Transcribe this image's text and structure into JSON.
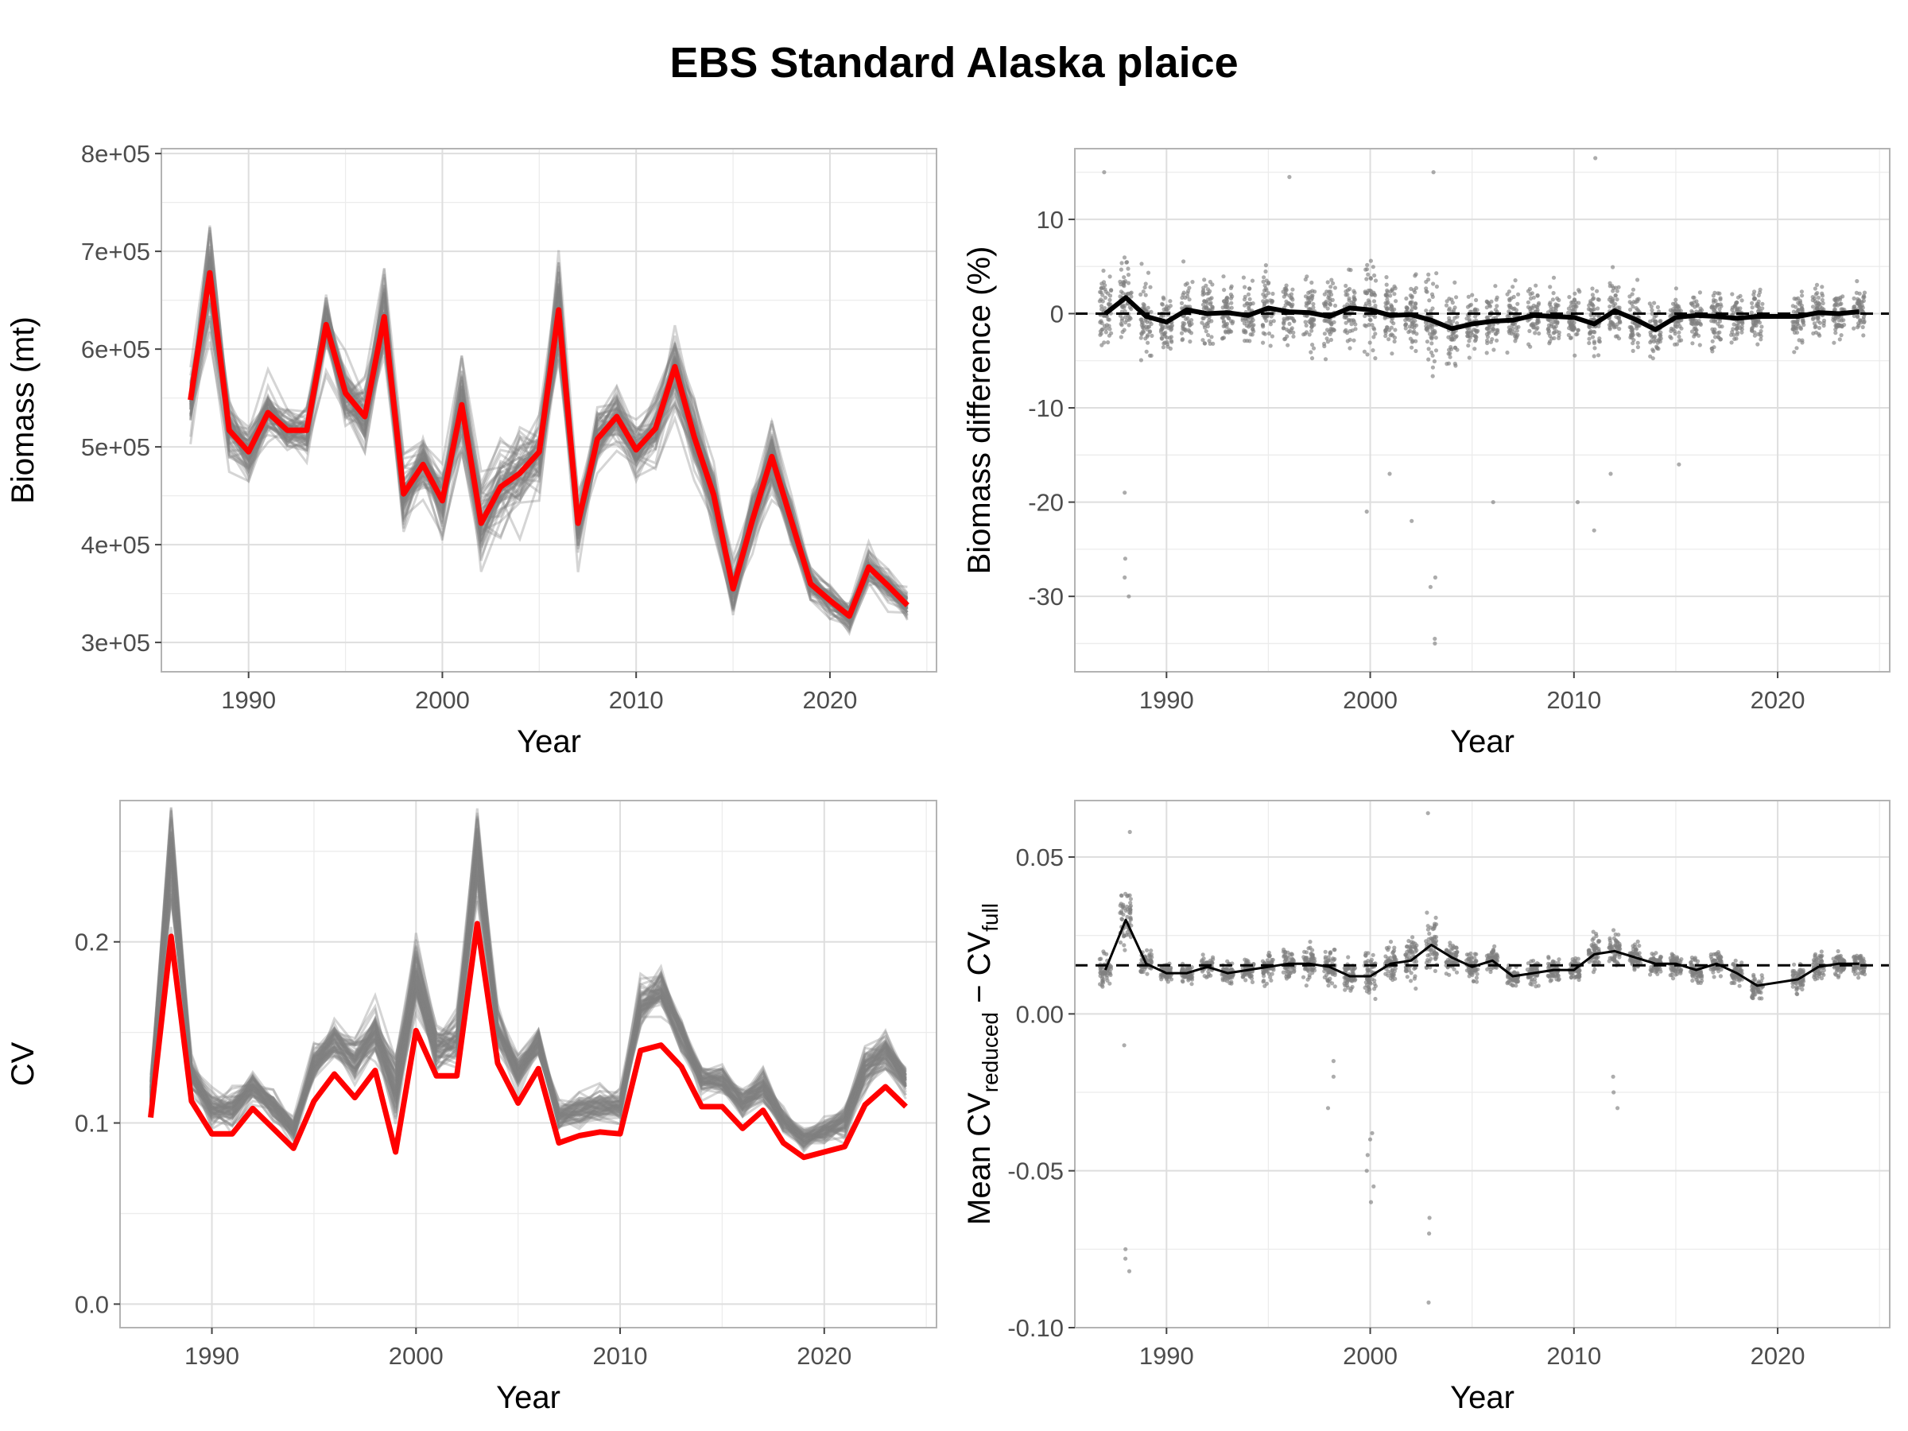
{
  "title": "EBS Standard Alaska plaice",
  "chart_data": [
    {
      "type": "line",
      "panel": "top-left",
      "xlabel": "Year",
      "ylabel": "Biomass (mt)",
      "xlim": [
        1985.5,
        2025.5
      ],
      "ylim": [
        270000,
        805000
      ],
      "x_ticks": [
        1990,
        2000,
        2010,
        2020
      ],
      "x_tick_labels": [
        "1990",
        "2000",
        "2010",
        "2020"
      ],
      "y_ticks": [
        300000,
        400000,
        500000,
        600000,
        700000,
        800000
      ],
      "y_tick_labels": [
        "3e+05",
        "4e+05",
        "5e+05",
        "6e+05",
        "7e+05",
        "8e+05"
      ],
      "grid": true,
      "x": [
        1987,
        1988,
        1989,
        1990,
        1991,
        1992,
        1993,
        1994,
        1995,
        1996,
        1997,
        1998,
        1999,
        2000,
        2001,
        2002,
        2003,
        2004,
        2005,
        2006,
        2007,
        2008,
        2009,
        2010,
        2011,
        2012,
        2013,
        2014,
        2015,
        2016,
        2017,
        2018,
        2019,
        2020,
        2021,
        2022,
        2023,
        2024
      ],
      "series": [
        {
          "role": "full survey",
          "color": "#ff0000",
          "values": [
            548000,
            678000,
            517000,
            495000,
            535000,
            517000,
            517000,
            625000,
            555000,
            531000,
            633000,
            452000,
            482000,
            445000,
            543000,
            422000,
            459000,
            473000,
            495000,
            640000,
            422000,
            508000,
            531000,
            497000,
            519000,
            582000,
            510000,
            451000,
            355000,
            425000,
            490000,
            425000,
            360000,
            343000,
            327000,
            377000,
            358000,
            338000
          ]
        }
      ],
      "replicates": {
        "role": "reduced-station replicates",
        "color": "#808080",
        "count": 60,
        "spread_fraction": [
          0.06,
          0.09,
          0.07,
          0.06,
          0.05,
          0.05,
          0.05,
          0.06,
          0.06,
          0.07,
          0.08,
          0.08,
          0.07,
          0.08,
          0.09,
          0.1,
          0.1,
          0.09,
          0.08,
          0.09,
          0.08,
          0.06,
          0.06,
          0.06,
          0.06,
          0.07,
          0.07,
          0.07,
          0.07,
          0.07,
          0.07,
          0.06,
          0.05,
          0.05,
          0.05,
          0.05,
          0.05,
          0.05
        ]
      }
    },
    {
      "type": "scatter",
      "panel": "top-right",
      "xlabel": "Year",
      "ylabel": "Biomass difference (%)",
      "xlim": [
        1985.5,
        2025.5
      ],
      "ylim": [
        -38,
        17.5
      ],
      "x_ticks": [
        1990,
        2000,
        2010,
        2020
      ],
      "x_tick_labels": [
        "1990",
        "2000",
        "2010",
        "2020"
      ],
      "y_ticks": [
        -30,
        -20,
        -10,
        0,
        10
      ],
      "y_tick_labels": [
        "-30",
        "-20",
        "-10",
        "0",
        "10"
      ],
      "grid": true,
      "reference_line": 0,
      "x": [
        1987,
        1988,
        1989,
        1990,
        1991,
        1992,
        1993,
        1994,
        1995,
        1996,
        1997,
        1998,
        1999,
        2000,
        2001,
        2002,
        2003,
        2004,
        2005,
        2006,
        2007,
        2008,
        2009,
        2010,
        2011,
        2012,
        2013,
        2014,
        2015,
        2016,
        2017,
        2018,
        2019,
        2021,
        2022,
        2023,
        2024
      ],
      "mean_line": {
        "color": "#000000",
        "values": [
          0,
          1.7,
          -0.3,
          -0.9,
          0.4,
          0,
          0.1,
          -0.2,
          0.6,
          0.2,
          0.1,
          -0.3,
          0.6,
          0.4,
          -0.2,
          -0.1,
          -0.7,
          -1.6,
          -1.1,
          -0.8,
          -0.7,
          -0.2,
          -0.3,
          -0.4,
          -1.1,
          0.3,
          -0.6,
          -1.7,
          -0.4,
          -0.2,
          -0.3,
          -0.5,
          -0.3,
          -0.3,
          0.1,
          0,
          0.2
        ]
      },
      "points": {
        "color": "#808080",
        "per_year": 60,
        "spread": [
          7,
          8,
          7,
          6,
          6,
          6,
          5,
          5,
          6,
          6,
          6,
          6,
          6,
          7,
          6,
          6,
          7,
          6,
          5,
          5,
          5,
          5,
          5,
          5,
          6,
          5,
          5,
          5,
          5,
          5,
          5,
          5,
          5,
          5,
          4,
          4,
          4
        ],
        "outliers": [
          {
            "x": 1988,
            "y": -26
          },
          {
            "x": 1988,
            "y": -28
          },
          {
            "x": 1988,
            "y": -30
          },
          {
            "x": 1988,
            "y": -19
          },
          {
            "x": 1987,
            "y": 15
          },
          {
            "x": 2003,
            "y": -28
          },
          {
            "x": 2003,
            "y": -29
          },
          {
            "x": 2003,
            "y": -35
          },
          {
            "x": 2003,
            "y": -34.5
          },
          {
            "x": 2002,
            "y": -22
          },
          {
            "x": 2000,
            "y": -21
          },
          {
            "x": 2001,
            "y": -17
          },
          {
            "x": 2011,
            "y": -23
          },
          {
            "x": 2010,
            "y": -20
          },
          {
            "x": 2012,
            "y": -17
          },
          {
            "x": 2006,
            "y": -20
          },
          {
            "x": 2015,
            "y": -16
          },
          {
            "x": 2011,
            "y": 16.5
          },
          {
            "x": 2003,
            "y": 15
          },
          {
            "x": 1996,
            "y": 14.5
          }
        ]
      }
    },
    {
      "type": "line",
      "panel": "bottom-left",
      "xlabel": "Year",
      "ylabel": "CV",
      "xlim": [
        1985.5,
        2025.5
      ],
      "ylim": [
        -0.013,
        0.278
      ],
      "x_ticks": [
        1990,
        2000,
        2010,
        2020
      ],
      "x_tick_labels": [
        "1990",
        "2000",
        "2010",
        "2020"
      ],
      "y_ticks": [
        0,
        0.1,
        0.2
      ],
      "y_tick_labels": [
        "0.0",
        "0.1",
        "0.2"
      ],
      "grid": true,
      "x": [
        1987,
        1988,
        1989,
        1990,
        1991,
        1992,
        1993,
        1994,
        1995,
        1996,
        1997,
        1998,
        1999,
        2000,
        2001,
        2002,
        2003,
        2004,
        2005,
        2006,
        2007,
        2008,
        2009,
        2010,
        2011,
        2012,
        2013,
        2014,
        2015,
        2016,
        2017,
        2018,
        2019,
        2020,
        2021,
        2022,
        2023,
        2024
      ],
      "series": [
        {
          "role": "full survey",
          "color": "#ff0000",
          "values": [
            0.103,
            0.203,
            0.112,
            0.094,
            0.094,
            0.108,
            0.097,
            0.086,
            0.112,
            0.127,
            0.114,
            0.129,
            0.084,
            0.151,
            0.126,
            0.126,
            0.21,
            0.133,
            0.111,
            0.13,
            0.089,
            0.093,
            0.095,
            0.094,
            0.14,
            0.143,
            0.131,
            0.109,
            0.109,
            0.097,
            0.107,
            0.089,
            0.081,
            0.084,
            0.087,
            0.11,
            0.12,
            0.109
          ]
        }
      ],
      "replicates": {
        "role": "reduced-station replicates",
        "color": "#808080",
        "count": 60,
        "mean_offset": [
          0.012,
          0.045,
          0.015,
          0.014,
          0.014,
          0.012,
          0.012,
          0.01,
          0.02,
          0.018,
          0.02,
          0.02,
          0.035,
          0.03,
          0.015,
          0.02,
          0.04,
          0.018,
          0.018,
          0.015,
          0.015,
          0.015,
          0.015,
          0.015,
          0.025,
          0.03,
          0.018,
          0.015,
          0.015,
          0.014,
          0.014,
          0.012,
          0.01,
          0.012,
          0.014,
          0.02,
          0.02,
          0.015
        ],
        "spread": [
          0.01,
          0.03,
          0.012,
          0.01,
          0.01,
          0.01,
          0.009,
          0.008,
          0.012,
          0.012,
          0.014,
          0.015,
          0.02,
          0.02,
          0.015,
          0.015,
          0.03,
          0.012,
          0.012,
          0.01,
          0.01,
          0.01,
          0.01,
          0.01,
          0.015,
          0.015,
          0.012,
          0.01,
          0.01,
          0.01,
          0.01,
          0.008,
          0.008,
          0.008,
          0.01,
          0.012,
          0.012,
          0.01
        ]
      }
    },
    {
      "type": "scatter",
      "panel": "bottom-right",
      "xlabel": "Year",
      "ylabel_prefix": "Mean CV",
      "ylabel_sub1": "reduced",
      "ylabel_mid": " − CV",
      "ylabel_sub2": "full",
      "xlim": [
        1985.5,
        2025.5
      ],
      "ylim": [
        -0.1,
        0.068
      ],
      "x_ticks": [
        1990,
        2000,
        2010,
        2020
      ],
      "x_tick_labels": [
        "1990",
        "2000",
        "2010",
        "2020"
      ],
      "y_ticks": [
        -0.1,
        -0.05,
        0,
        0.05
      ],
      "y_tick_labels": [
        "-0.10",
        "-0.05",
        "0.00",
        "0.05"
      ],
      "grid": true,
      "reference_line": 0.0155,
      "x": [
        1987,
        1988,
        1989,
        1990,
        1991,
        1992,
        1993,
        1994,
        1995,
        1996,
        1997,
        1998,
        1999,
        2000,
        2001,
        2002,
        2003,
        2004,
        2005,
        2006,
        2007,
        2008,
        2009,
        2010,
        2011,
        2012,
        2013,
        2014,
        2015,
        2016,
        2017,
        2018,
        2019,
        2021,
        2022,
        2023,
        2024
      ],
      "mean_line": {
        "color": "#000000",
        "values": [
          0.014,
          0.03,
          0.016,
          0.013,
          0.013,
          0.015,
          0.013,
          0.014,
          0.015,
          0.016,
          0.016,
          0.015,
          0.012,
          0.012,
          0.016,
          0.017,
          0.022,
          0.018,
          0.015,
          0.017,
          0.012,
          0.013,
          0.014,
          0.014,
          0.019,
          0.02,
          0.018,
          0.016,
          0.016,
          0.014,
          0.016,
          0.013,
          0.009,
          0.011,
          0.015,
          0.016,
          0.016
        ]
      },
      "points": {
        "color": "#808080",
        "per_year": 60,
        "spread": [
          0.008,
          0.015,
          0.006,
          0.005,
          0.005,
          0.005,
          0.005,
          0.005,
          0.007,
          0.008,
          0.008,
          0.009,
          0.008,
          0.012,
          0.01,
          0.01,
          0.012,
          0.008,
          0.007,
          0.007,
          0.006,
          0.006,
          0.006,
          0.006,
          0.009,
          0.009,
          0.007,
          0.006,
          0.006,
          0.006,
          0.006,
          0.006,
          0.006,
          0.007,
          0.007,
          0.006,
          0.006
        ],
        "outliers": [
          {
            "x": 1988,
            "y": -0.082
          },
          {
            "x": 1988,
            "y": -0.075
          },
          {
            "x": 1988,
            "y": -0.078
          },
          {
            "x": 1988,
            "y": -0.01
          },
          {
            "x": 1998,
            "y": -0.03
          },
          {
            "x": 1998,
            "y": -0.02
          },
          {
            "x": 1998,
            "y": -0.015
          },
          {
            "x": 2000,
            "y": -0.04
          },
          {
            "x": 2000,
            "y": -0.045
          },
          {
            "x": 2000,
            "y": -0.05
          },
          {
            "x": 2000,
            "y": -0.055
          },
          {
            "x": 2000,
            "y": -0.06
          },
          {
            "x": 2000,
            "y": -0.038
          },
          {
            "x": 2003,
            "y": -0.065
          },
          {
            "x": 2003,
            "y": -0.07
          },
          {
            "x": 2003,
            "y": -0.092
          },
          {
            "x": 2003,
            "y": 0.064
          },
          {
            "x": 2012,
            "y": -0.025
          },
          {
            "x": 2012,
            "y": -0.03
          },
          {
            "x": 2012,
            "y": -0.02
          },
          {
            "x": 1988,
            "y": 0.058
          }
        ]
      }
    }
  ]
}
